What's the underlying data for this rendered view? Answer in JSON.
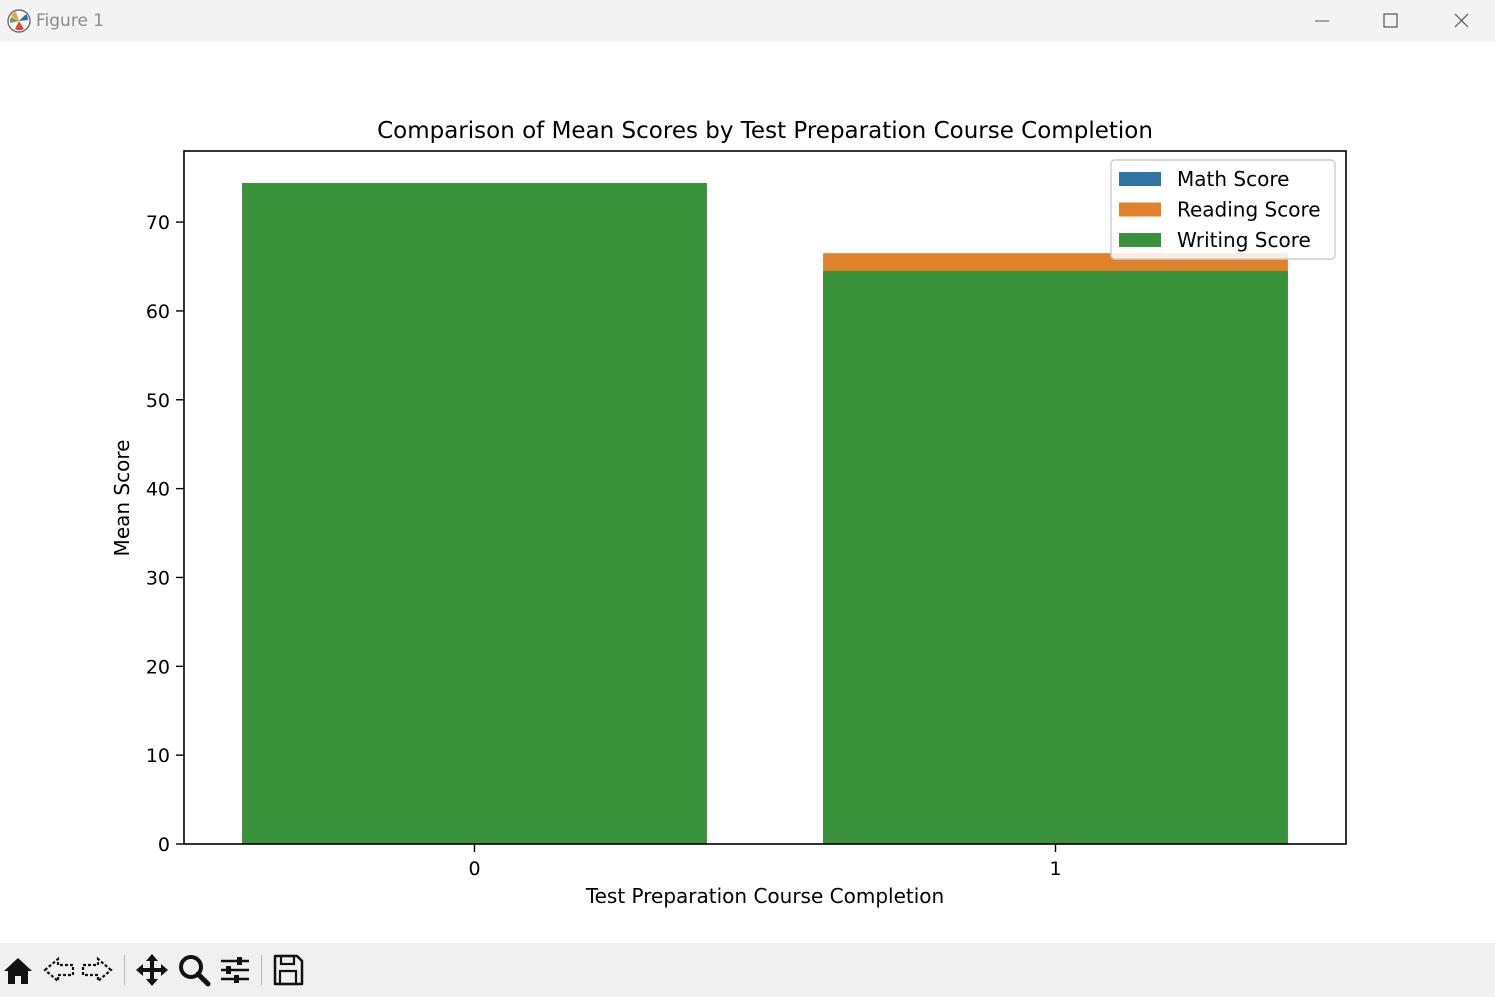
{
  "window": {
    "title": "Figure 1",
    "app_icon": "matplotlib-logo-icon",
    "controls": [
      "minimize-icon",
      "maximize-icon",
      "close-icon"
    ]
  },
  "toolbar": {
    "buttons": [
      "home-icon",
      "back-arrow-icon",
      "forward-arrow-icon",
      "pan-move-icon",
      "zoom-magnifier-icon",
      "configure-subplots-icon",
      "save-floppy-icon"
    ]
  },
  "chart_data": {
    "type": "bar",
    "title": "Comparison of Mean Scores by Test Preparation Course Completion",
    "xlabel": "Test Preparation Course Completion",
    "ylabel": "Mean Score",
    "categories": [
      "0",
      "1"
    ],
    "ylim": [
      0,
      78
    ],
    "yticks": [
      0,
      10,
      20,
      30,
      40,
      50,
      60,
      70
    ],
    "grid": false,
    "legend_position": "top-right",
    "overlaid": true,
    "series": [
      {
        "name": "Math Score",
        "color": "#3274a1",
        "values": [
          69.7,
          64.1
        ]
      },
      {
        "name": "Reading Score",
        "color": "#e1812c",
        "values": [
          73.9,
          66.5
        ]
      },
      {
        "name": "Writing Score",
        "color": "#3a923a",
        "values": [
          74.4,
          64.5
        ]
      }
    ]
  }
}
